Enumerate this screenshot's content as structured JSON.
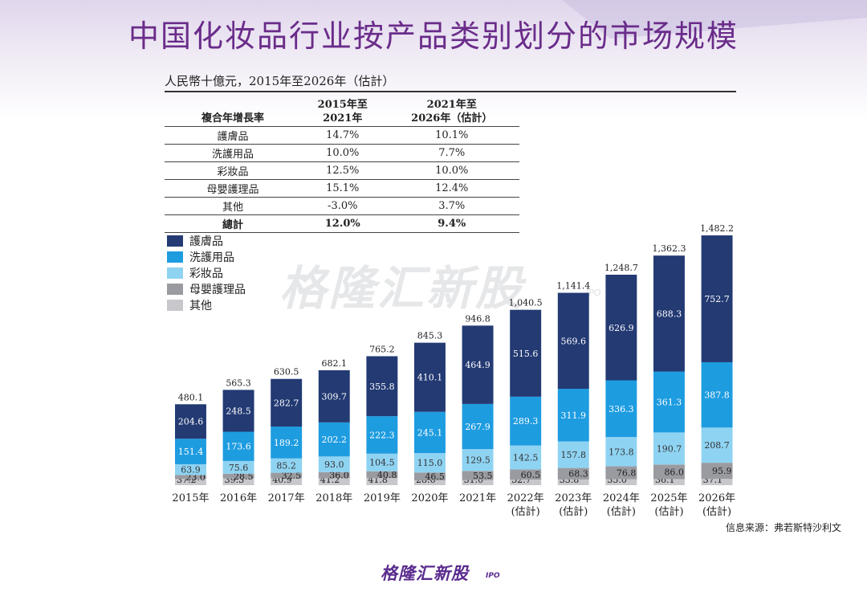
{
  "page_title": "中国化妆品行业按产品类别划分的市场规模",
  "unit_note": "人民幣十億元，2015年至2026年（估計）",
  "cagr_table": {
    "row_header": "複合年增長率",
    "col1_header": [
      "2015年至",
      "2021年"
    ],
    "col2_header": [
      "2021年至",
      "2026年（估計）"
    ],
    "rows": [
      {
        "label": "護膚品",
        "v1": "14.7%",
        "v2": "10.1%"
      },
      {
        "label": "洗護用品",
        "v1": "10.0%",
        "v2": "7.7%"
      },
      {
        "label": "彩妝品",
        "v1": "12.5%",
        "v2": "10.0%"
      },
      {
        "label": "母嬰護理品",
        "v1": "15.1%",
        "v2": "12.4%"
      },
      {
        "label": "其他",
        "v1": "-3.0%",
        "v2": "3.7%"
      }
    ],
    "total": {
      "label": "總計",
      "v1": "12.0%",
      "v2": "9.4%"
    }
  },
  "chart_data": {
    "type": "bar",
    "stacked": true,
    "categories": [
      "2015年",
      "2016年",
      "2017年",
      "2018年",
      "2019年",
      "2020年",
      "2021年",
      "2022年\n(估計)",
      "2023年\n(估計)",
      "2024年\n(估計)",
      "2025年\n(估計)",
      "2026年\n(估計)"
    ],
    "series": [
      {
        "name": "其他",
        "color": "#c8c8cc",
        "values": [
          37.2,
          39.3,
          40.9,
          41.2,
          41.8,
          28.6,
          31.0,
          32.7,
          33.8,
          35.0,
          36.1,
          37.1
        ]
      },
      {
        "name": "母嬰護理品",
        "color": "#9a9ba0",
        "values": [
          23.0,
          28.5,
          32.5,
          36.0,
          40.8,
          46.5,
          53.5,
          60.5,
          68.3,
          76.8,
          86.0,
          95.9
        ]
      },
      {
        "name": "彩妝品",
        "color": "#8fd3f2",
        "values": [
          63.9,
          75.6,
          85.2,
          93.0,
          104.5,
          115.0,
          129.5,
          142.5,
          157.8,
          173.8,
          190.7,
          208.7
        ]
      },
      {
        "name": "洗護用品",
        "color": "#1e9ce0",
        "values": [
          151.4,
          173.6,
          189.2,
          202.2,
          222.3,
          245.1,
          267.9,
          289.3,
          311.9,
          336.3,
          361.3,
          387.8
        ]
      },
      {
        "name": "護膚品",
        "color": "#233a73",
        "values": [
          204.6,
          248.5,
          282.7,
          309.7,
          355.8,
          410.1,
          464.9,
          515.6,
          569.6,
          626.9,
          688.3,
          752.7
        ]
      }
    ],
    "totals": [
      "480.1",
      "565.3",
      "630.5",
      "682.1",
      "765.2",
      "845.3",
      "946.8",
      "1,040.5",
      "1,141.4",
      "1,248.7",
      "1,362.3",
      "1,482.2"
    ],
    "ylim": [
      0,
      1500
    ],
    "legend_position": "top-left"
  },
  "legend": [
    {
      "label": "護膚品",
      "color": "#233a73"
    },
    {
      "label": "洗護用品",
      "color": "#1e9ce0"
    },
    {
      "label": "彩妝品",
      "color": "#8fd3f2"
    },
    {
      "label": "母嬰護理品",
      "color": "#9a9ba0"
    },
    {
      "label": "其他",
      "color": "#c8c8cc"
    }
  ],
  "source_note": "信息来源：弗若斯特沙利文",
  "watermark": {
    "text": "格隆汇新股",
    "tag": "IPO"
  },
  "footer_logo": {
    "text": "格隆汇新股",
    "tag": "IPO"
  }
}
